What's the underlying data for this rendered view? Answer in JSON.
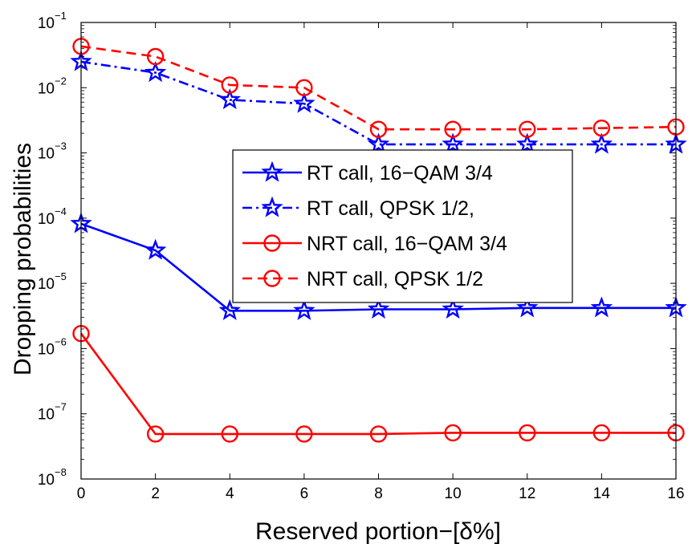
{
  "chart_data": {
    "type": "line",
    "title": "",
    "xlabel": "Reserved portion−[δ%]",
    "ylabel": "Dropping probabilities",
    "xlim": [
      0,
      16
    ],
    "ylim": [
      1e-08,
      0.1
    ],
    "yscale": "log",
    "grid": false,
    "legend_position": "center-right",
    "x": [
      0,
      2,
      4,
      6,
      8,
      10,
      12,
      14,
      16
    ],
    "x_tick_labels": [
      "0",
      "2",
      "4",
      "6",
      "8",
      "10",
      "12",
      "14",
      "16"
    ],
    "y_ticks": [
      {
        "base": "10",
        "exponent": "−8",
        "value": 1e-08
      },
      {
        "base": "10",
        "exponent": "−7",
        "value": 1e-07
      },
      {
        "base": "10",
        "exponent": "−6",
        "value": 1e-06
      },
      {
        "base": "10",
        "exponent": "−5",
        "value": 1e-05
      },
      {
        "base": "10",
        "exponent": "−4",
        "value": 0.0001
      },
      {
        "base": "10",
        "exponent": "−3",
        "value": 0.001
      },
      {
        "base": "10",
        "exponent": "−2",
        "value": 0.01
      },
      {
        "base": "10",
        "exponent": "−1",
        "value": 0.1
      }
    ],
    "series": [
      {
        "name": "RT call, 16−QAM 3/4",
        "color": "#0000ff",
        "line_style": "solid",
        "marker": "star",
        "values": [
          8.2e-05,
          3.2e-05,
          3.8e-06,
          3.8e-06,
          4e-06,
          4e-06,
          4.2e-06,
          4.2e-06,
          4.2e-06
        ]
      },
      {
        "name": "RT call, QPSK 1/2,",
        "color": "#0000ff",
        "line_style": "dashdot",
        "marker": "star",
        "values": [
          0.025,
          0.017,
          0.0065,
          0.0057,
          0.00135,
          0.00135,
          0.00135,
          0.00135,
          0.00135
        ]
      },
      {
        "name": "NRT call, 16−QAM 3/4",
        "color": "#ff0000",
        "line_style": "solid",
        "marker": "circle",
        "values": [
          1.7e-06,
          4.9e-08,
          4.9e-08,
          4.9e-08,
          4.9e-08,
          5.1e-08,
          5.1e-08,
          5.1e-08,
          5.1e-08
        ]
      },
      {
        "name": "NRT call, QPSK 1/2",
        "color": "#ff0000",
        "line_style": "dashed",
        "marker": "circle",
        "values": [
          0.043,
          0.03,
          0.011,
          0.01,
          0.0023,
          0.0023,
          0.0023,
          0.0024,
          0.0025
        ]
      }
    ]
  }
}
